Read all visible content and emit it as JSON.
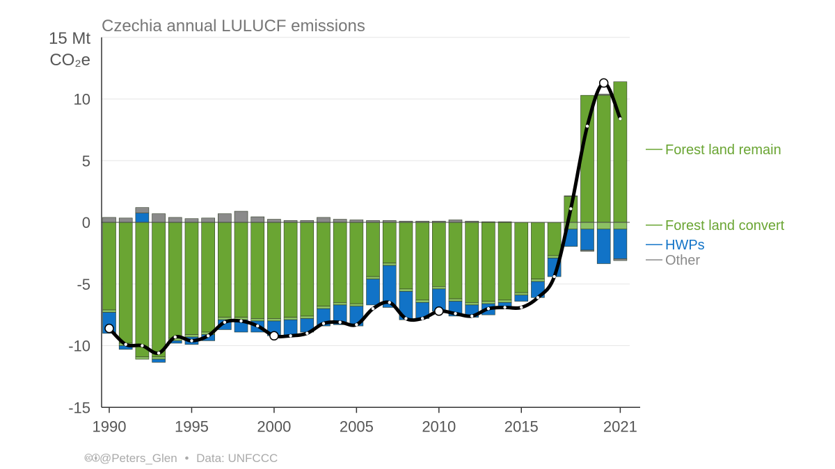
{
  "chart_data": {
    "type": "bar",
    "title": "Czechia annual LULUCF emissions",
    "ylabel_top": "15 Mt",
    "ylabel_unit": "CO₂e",
    "ylim": [
      -15,
      15
    ],
    "yticks": [
      -15,
      -10,
      -5,
      0,
      5,
      10
    ],
    "ytick_labels": [
      "-15",
      "-10",
      "-5",
      "0",
      "5",
      "10"
    ],
    "xticks": [
      1990,
      1995,
      2000,
      2005,
      2010,
      2015,
      2021
    ],
    "years": [
      1990,
      1991,
      1992,
      1993,
      1994,
      1995,
      1996,
      1997,
      1998,
      1999,
      2000,
      2001,
      2002,
      2003,
      2004,
      2005,
      2006,
      2007,
      2008,
      2009,
      2010,
      2011,
      2012,
      2013,
      2014,
      2015,
      2016,
      2017,
      2018,
      2019,
      2020,
      2021
    ],
    "series": [
      {
        "name": "Forest land remain",
        "color": "#6aa533",
        "values": [
          -7.1,
          -9.8,
          -10.9,
          -10.9,
          -9.4,
          -9.1,
          -8.9,
          -7.7,
          -7.7,
          -7.8,
          -7.8,
          -7.7,
          -7.6,
          -6.8,
          -6.5,
          -6.6,
          -4.4,
          -3.3,
          -5.4,
          -6.3,
          -5.2,
          -6.2,
          -6.5,
          -6.4,
          -6.3,
          -5.7,
          -4.6,
          -2.7,
          2.1,
          10.3,
          10.3,
          11.4
        ]
      },
      {
        "name": "Forest land convert",
        "color": "#8cc063",
        "values": [
          -0.2,
          -0.2,
          -0.2,
          -0.2,
          -0.2,
          -0.2,
          -0.2,
          -0.2,
          -0.2,
          -0.2,
          -0.2,
          -0.2,
          -0.2,
          -0.2,
          -0.2,
          -0.2,
          -0.2,
          -0.2,
          -0.2,
          -0.2,
          -0.2,
          -0.2,
          -0.2,
          -0.2,
          -0.2,
          -0.2,
          -0.2,
          -0.2,
          -0.55,
          -0.55,
          -0.55,
          -0.55
        ]
      },
      {
        "name": "HWPs",
        "color": "#1173c7",
        "values": [
          -1.7,
          -0.3,
          0.75,
          -0.25,
          -0.2,
          -0.6,
          -0.5,
          -0.8,
          -1.0,
          -0.9,
          -1.2,
          -1.3,
          -1.1,
          -1.4,
          -1.6,
          -1.6,
          -2.1,
          -3.4,
          -2.3,
          -1.3,
          -1.8,
          -1.2,
          -1.0,
          -0.9,
          -0.5,
          -0.5,
          -1.3,
          -1.5,
          -1.4,
          -1.7,
          -2.8,
          -2.4
        ]
      },
      {
        "name": "Other",
        "color": "#8a8a8a",
        "values": [
          0.4,
          0.35,
          0.45,
          0.7,
          0.4,
          0.3,
          0.35,
          0.7,
          0.9,
          0.45,
          0.25,
          0.15,
          0.15,
          0.4,
          0.25,
          0.2,
          0.15,
          0.15,
          0.1,
          0.1,
          0.1,
          0.2,
          0.1,
          0.05,
          0.05,
          0.0,
          0.0,
          0.0,
          0.05,
          -0.1,
          0.1,
          -0.15
        ]
      }
    ],
    "net": {
      "name": "Net",
      "color": "#000000",
      "values": [
        -8.6,
        -9.9,
        -10.0,
        -10.6,
        -9.3,
        -9.6,
        -9.2,
        -8.1,
        -8.0,
        -8.4,
        -9.2,
        -9.2,
        -9.0,
        -8.2,
        -8.1,
        -8.3,
        -7.0,
        -6.5,
        -7.8,
        -7.8,
        -7.2,
        -7.4,
        -7.6,
        -7.0,
        -6.9,
        -6.9,
        -6.1,
        -4.4,
        1.1,
        7.8,
        11.3,
        8.4
      ],
      "highlight_years": [
        1990,
        2000,
        2010,
        2020
      ]
    },
    "legend": [
      "Forest land remain",
      "Forest land convert",
      "HWPs",
      "Other"
    ],
    "legend_colors": [
      "#6aa533",
      "#6aa533",
      "#1173c7",
      "#8a8a8a"
    ],
    "legend_placement": "right",
    "grid": true
  },
  "footer": {
    "icons": "🅭🅯",
    "handle": "@Peters_Glen",
    "separator": "•",
    "source": "Data: UNFCCC"
  }
}
